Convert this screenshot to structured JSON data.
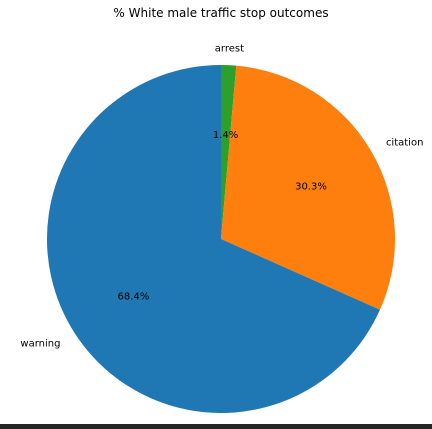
{
  "chart_data": {
    "type": "pie",
    "title": "% White male traffic stop outcomes",
    "slices": [
      {
        "label": "arrest",
        "value": 1.4,
        "pct_label": "1.4%",
        "color": "#2ca02c"
      },
      {
        "label": "citation",
        "value": 30.3,
        "pct_label": "30.3%",
        "color": "#ff7f0e"
      },
      {
        "label": "warning",
        "value": 68.4,
        "pct_label": "68.4%",
        "color": "#1f77b4"
      }
    ],
    "start_angle_deg": 90,
    "direction": "clockwise"
  }
}
